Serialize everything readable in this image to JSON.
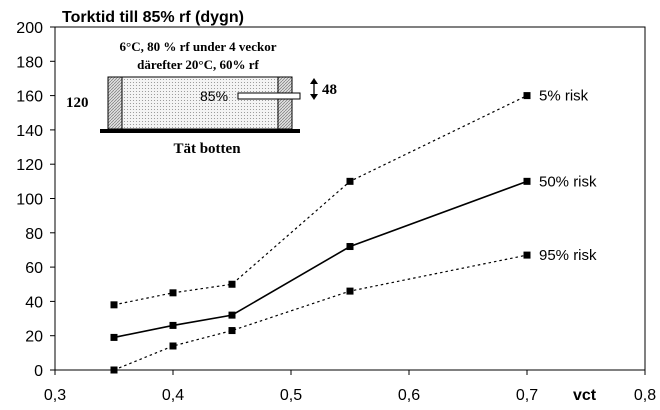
{
  "chart_data": {
    "type": "line",
    "title": "",
    "ylabel": "Torktid till 85% rf (dygn)",
    "xlabel": "vct",
    "xlim": [
      0.3,
      0.8
    ],
    "ylim": [
      0,
      200
    ],
    "x_ticks": [
      0.3,
      0.4,
      0.5,
      0.6,
      0.7,
      0.8
    ],
    "x_tick_labels": [
      "0,3",
      "0,4",
      "0,5",
      "0,6",
      "0,7",
      "0,8"
    ],
    "y_ticks": [
      0,
      20,
      40,
      60,
      80,
      100,
      120,
      140,
      160,
      180,
      200
    ],
    "y_tick_labels": [
      "0",
      "20",
      "40",
      "60",
      "80",
      "100",
      "120",
      "140",
      "160",
      "180",
      "200"
    ],
    "grid": false,
    "series": [
      {
        "name": "5% risk",
        "style": "dotted",
        "x": [
          0.35,
          0.4,
          0.45,
          0.55,
          0.7
        ],
        "y": [
          38,
          45,
          50,
          110,
          160
        ]
      },
      {
        "name": "50% risk",
        "style": "solid",
        "x": [
          0.35,
          0.4,
          0.45,
          0.55,
          0.7
        ],
        "y": [
          19,
          26,
          32,
          72,
          110
        ]
      },
      {
        "name": "95% risk",
        "style": "dotted",
        "x": [
          0.35,
          0.4,
          0.45,
          0.55,
          0.7
        ],
        "y": [
          0,
          14,
          23,
          46,
          67
        ]
      }
    ],
    "inset": {
      "line1": "6°C, 80 % rf under 4 veckor",
      "line2": "därefter 20°C, 60% rf",
      "thickness_label": "120",
      "measure_label": "85%",
      "depth_label": "48",
      "base_label": "Tät botten"
    }
  }
}
